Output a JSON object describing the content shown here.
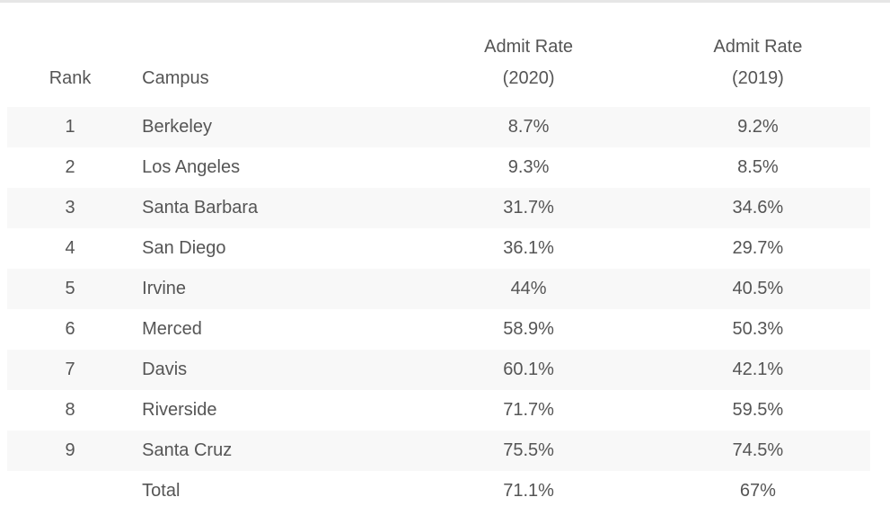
{
  "table": {
    "headers": {
      "rank": "Rank",
      "campus": "Campus",
      "rate2020_line1": "Admit Rate",
      "rate2020_line2": "(2020)",
      "rate2019_line1": "Admit Rate",
      "rate2019_line2": "(2019)"
    },
    "rows": [
      {
        "rank": "1",
        "campus": "Berkeley",
        "rate2020": "8.7%",
        "rate2019": "9.2%"
      },
      {
        "rank": "2",
        "campus": "Los Angeles",
        "rate2020": "9.3%",
        "rate2019": "8.5%"
      },
      {
        "rank": "3",
        "campus": "Santa Barbara",
        "rate2020": "31.7%",
        "rate2019": "34.6%"
      },
      {
        "rank": "4",
        "campus": "San Diego",
        "rate2020": "36.1%",
        "rate2019": "29.7%"
      },
      {
        "rank": "5",
        "campus": "Irvine",
        "rate2020": "44%",
        "rate2019": "40.5%"
      },
      {
        "rank": "6",
        "campus": "Merced",
        "rate2020": "58.9%",
        "rate2019": "50.3%"
      },
      {
        "rank": "7",
        "campus": "Davis",
        "rate2020": "60.1%",
        "rate2019": "42.1%"
      },
      {
        "rank": "8",
        "campus": "Riverside",
        "rate2020": "71.7%",
        "rate2019": "59.5%"
      },
      {
        "rank": "9",
        "campus": "Santa Cruz",
        "rate2020": "75.5%",
        "rate2019": "74.5%"
      },
      {
        "rank": "",
        "campus": "Total",
        "rate2020": "71.1%",
        "rate2019": "67%"
      }
    ]
  },
  "colors": {
    "text": "#555555",
    "stripe": "#f8f8f8",
    "background": "#ffffff",
    "top_rule": "#e6e6e6"
  }
}
